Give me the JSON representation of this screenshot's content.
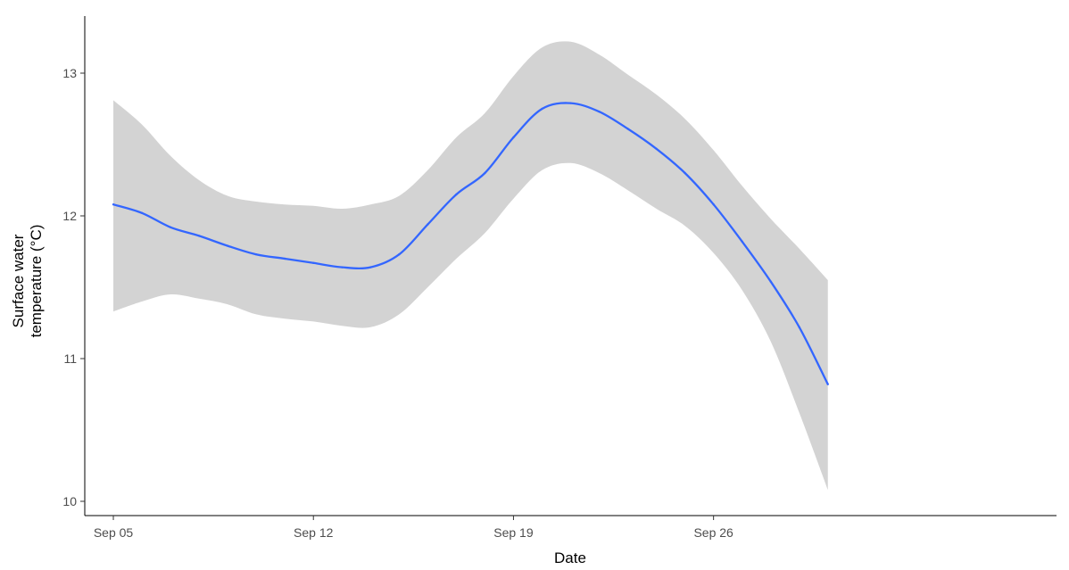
{
  "chart_data": {
    "type": "line",
    "title": "",
    "xlabel": "Date",
    "ylabel_lines": [
      "Surface water",
      "temperature (°C)"
    ],
    "x_ticks": [
      "2023-09-05",
      "2023-09-12",
      "2023-09-19",
      "2023-09-26"
    ],
    "x_tick_labels": [
      "Sep 05",
      "Sep 12",
      "Sep 19",
      "Sep 26"
    ],
    "y_ticks": [
      10,
      11,
      12,
      13
    ],
    "xlim": [
      "2023-09-04",
      "2023-10-08"
    ],
    "ylim": [
      9.9,
      13.4
    ],
    "grid": false,
    "series": [
      {
        "color": "#3366ff",
        "band_color": "#d3d3d3",
        "points": [
          {
            "x": "2023-09-05",
            "y": 12.08,
            "lo": 11.33,
            "hi": 12.81
          },
          {
            "x": "2023-09-06",
            "y": 12.02,
            "lo": 11.4,
            "hi": 12.64
          },
          {
            "x": "2023-09-07",
            "y": 11.92,
            "lo": 11.45,
            "hi": 12.42
          },
          {
            "x": "2023-09-08",
            "y": 11.86,
            "lo": 11.42,
            "hi": 12.25
          },
          {
            "x": "2023-09-09",
            "y": 11.79,
            "lo": 11.38,
            "hi": 12.14
          },
          {
            "x": "2023-09-10",
            "y": 11.73,
            "lo": 11.31,
            "hi": 12.1
          },
          {
            "x": "2023-09-11",
            "y": 11.7,
            "lo": 11.28,
            "hi": 12.08
          },
          {
            "x": "2023-09-12",
            "y": 11.67,
            "lo": 11.26,
            "hi": 12.07
          },
          {
            "x": "2023-09-13",
            "y": 11.64,
            "lo": 11.23,
            "hi": 12.05
          },
          {
            "x": "2023-09-14",
            "y": 11.64,
            "lo": 11.22,
            "hi": 12.08
          },
          {
            "x": "2023-09-15",
            "y": 11.73,
            "lo": 11.31,
            "hi": 12.14
          },
          {
            "x": "2023-09-16",
            "y": 11.94,
            "lo": 11.5,
            "hi": 12.32
          },
          {
            "x": "2023-09-17",
            "y": 12.15,
            "lo": 11.7,
            "hi": 12.55
          },
          {
            "x": "2023-09-18",
            "y": 12.3,
            "lo": 11.88,
            "hi": 12.72
          },
          {
            "x": "2023-09-19",
            "y": 12.55,
            "lo": 12.12,
            "hi": 12.98
          },
          {
            "x": "2023-09-20",
            "y": 12.75,
            "lo": 12.32,
            "hi": 13.18
          },
          {
            "x": "2023-09-21",
            "y": 12.79,
            "lo": 12.37,
            "hi": 13.22
          },
          {
            "x": "2023-09-22",
            "y": 12.73,
            "lo": 12.3,
            "hi": 13.13
          },
          {
            "x": "2023-09-23",
            "y": 12.61,
            "lo": 12.18,
            "hi": 12.99
          },
          {
            "x": "2023-09-24",
            "y": 12.47,
            "lo": 12.05,
            "hi": 12.85
          },
          {
            "x": "2023-09-25",
            "y": 12.3,
            "lo": 11.93,
            "hi": 12.68
          },
          {
            "x": "2023-09-26",
            "y": 12.08,
            "lo": 11.74,
            "hi": 12.46
          },
          {
            "x": "2023-09-27",
            "y": 11.82,
            "lo": 11.48,
            "hi": 12.21
          },
          {
            "x": "2023-09-28",
            "y": 11.54,
            "lo": 11.12,
            "hi": 11.98
          },
          {
            "x": "2023-09-29",
            "y": 11.22,
            "lo": 10.62,
            "hi": 11.77
          },
          {
            "x": "2023-09-30",
            "y": 10.82,
            "lo": 10.08,
            "hi": 11.55
          }
        ]
      }
    ]
  }
}
